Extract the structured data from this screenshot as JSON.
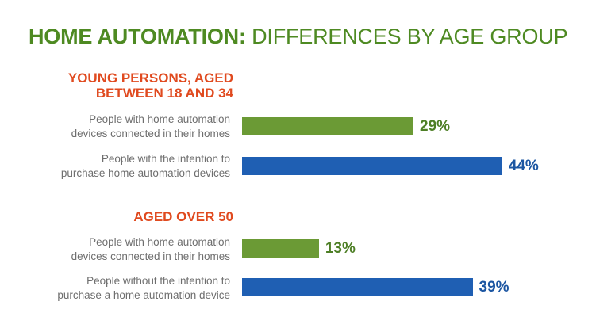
{
  "title": {
    "bold_part": "HOME AUTOMATION:",
    "regular_part": "DIFFERENCES BY AGE GROUP"
  },
  "colors": {
    "title": "#4e8a22",
    "group_heading": "#e04a1f",
    "installed": "#6b9a35",
    "intention": "#1f5fb3",
    "installed_label": "#4e7f26",
    "intention_label": "#1c56a2",
    "row_label": "#6e6e6e"
  },
  "chart_data": {
    "type": "bar",
    "orientation": "horizontal",
    "unit": "%",
    "xlim": [
      0,
      50
    ],
    "groups": [
      {
        "heading_line1": "YOUNG PERSONS, AGED",
        "heading_line2": "BETWEEN 18 AND 34",
        "rows": [
          {
            "line1": "People with home automation",
            "line2": "devices connected in their homes",
            "value": 29,
            "value_label": "29%",
            "kind": "installed"
          },
          {
            "line1": "People with the intention to",
            "line2": "purchase home automation devices",
            "value": 44,
            "value_label": "44%",
            "kind": "intention"
          }
        ]
      },
      {
        "heading_line1": "AGED OVER 50",
        "heading_line2": "",
        "rows": [
          {
            "line1": "People with home automation",
            "line2": "devices connected in their homes",
            "value": 13,
            "value_label": "13%",
            "kind": "installed"
          },
          {
            "line1": "People without the intention to",
            "line2": "purchase a home automation device",
            "value": 39,
            "value_label": "39%",
            "kind": "intention"
          }
        ]
      }
    ]
  }
}
